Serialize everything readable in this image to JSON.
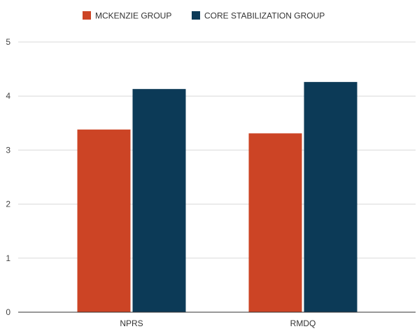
{
  "chart_data": {
    "type": "bar",
    "categories": [
      "NPRS",
      "RMDQ"
    ],
    "series": [
      {
        "name": "MCKENZIE GROUP",
        "values": [
          3.38,
          3.31
        ],
        "color": "#cc4425"
      },
      {
        "name": "CORE STABILIZATION GROUP",
        "values": [
          4.13,
          4.26
        ],
        "color": "#0c3a57"
      }
    ],
    "ylim": [
      0,
      5
    ],
    "yticks": [
      0,
      1,
      2,
      3,
      4,
      5
    ],
    "grid": true,
    "legend_position": "top-center",
    "title": "",
    "xlabel": "",
    "ylabel": ""
  }
}
